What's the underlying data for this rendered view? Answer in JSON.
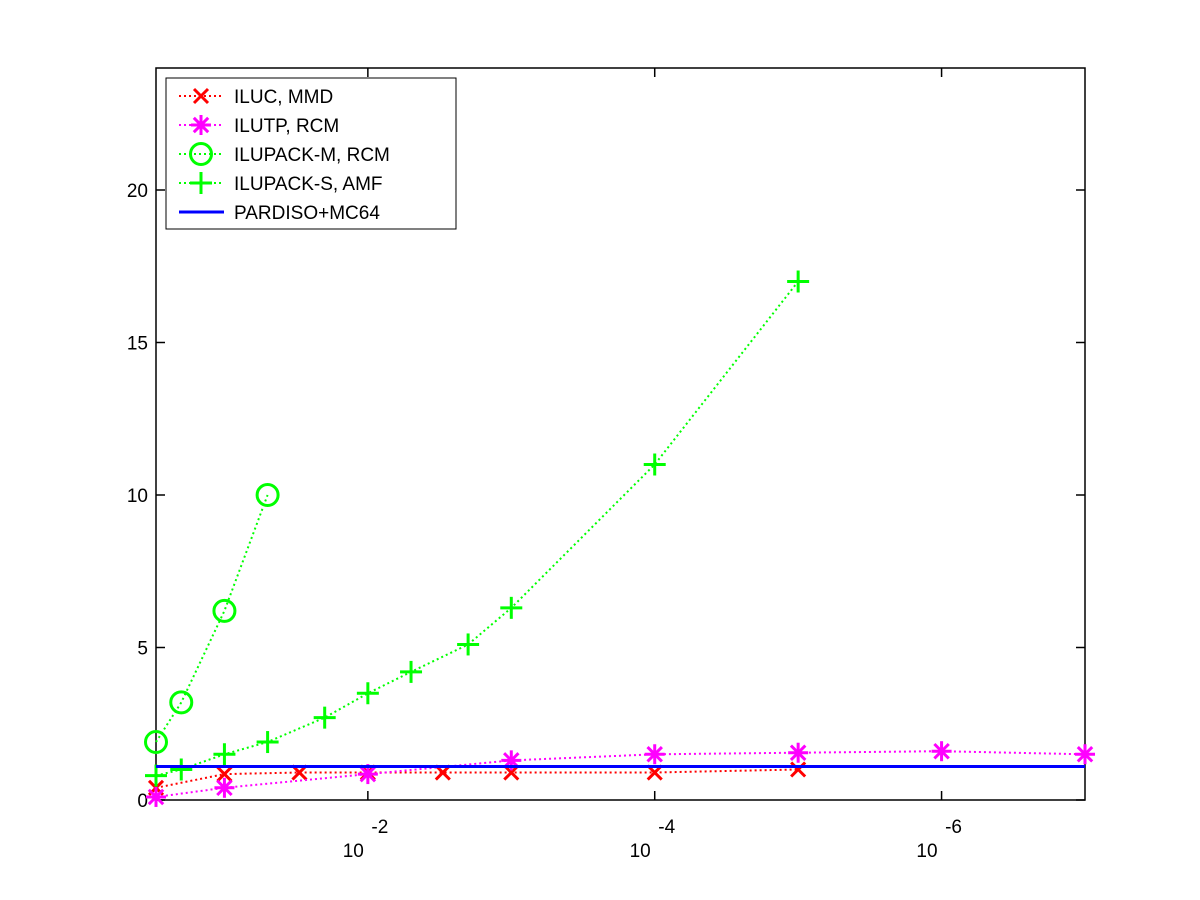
{
  "chart_data": {
    "type": "line",
    "title": "",
    "xlabel": "",
    "ylabel": "",
    "x_scale": "log",
    "x_reversed": true,
    "xlim": [
      0.3,
      1e-07
    ],
    "ylim": [
      0,
      24
    ],
    "yticks": [
      0,
      5,
      10,
      15,
      20
    ],
    "xticks": [
      {
        "value": 0.01,
        "base": "10",
        "exponent": "-2"
      },
      {
        "value": 0.0001,
        "base": "10",
        "exponent": "-4"
      },
      {
        "value": 1e-06,
        "base": "10",
        "exponent": "-6"
      }
    ],
    "grid": false,
    "legend_position": "top-left",
    "series": [
      {
        "name": "ILUC, MMD",
        "color": "#ff0000",
        "marker": "x",
        "line_style": "dotted",
        "x": [
          0.3,
          0.1,
          0.03,
          0.01,
          0.003,
          0.001,
          0.0001,
          1e-05
        ],
        "y": [
          0.4,
          0.85,
          0.9,
          0.9,
          0.9,
          0.9,
          0.9,
          1.0
        ]
      },
      {
        "name": "ILUTP, RCM",
        "color": "#ff00ff",
        "marker": "asterisk",
        "line_style": "dotted",
        "x": [
          0.3,
          0.1,
          0.01,
          0.001,
          0.0001,
          1e-05,
          1e-06,
          1e-07
        ],
        "y": [
          0.1,
          0.4,
          0.85,
          1.3,
          1.5,
          1.55,
          1.6,
          1.5
        ]
      },
      {
        "name": "ILUPACK-M, RCM",
        "color": "#00ff00",
        "marker": "circle",
        "line_style": "dotted",
        "x": [
          0.3,
          0.2,
          0.1,
          0.05
        ],
        "y": [
          1.9,
          3.2,
          6.2,
          10.0
        ]
      },
      {
        "name": "ILUPACK-S, AMF",
        "color": "#00ff00",
        "marker": "plus",
        "line_style": "dotted",
        "x": [
          0.3,
          0.2,
          0.1,
          0.05,
          0.02,
          0.01,
          0.005,
          0.002,
          0.001,
          0.0001,
          1e-05
        ],
        "y": [
          0.8,
          1.0,
          1.5,
          1.9,
          2.7,
          3.5,
          4.2,
          5.1,
          6.3,
          11.0,
          17.0
        ]
      },
      {
        "name": "PARDISO+MC64",
        "color": "#0000ff",
        "marker": "none",
        "line_style": "solid",
        "x": [
          0.3,
          1e-07
        ],
        "y": [
          1.1,
          1.1
        ]
      }
    ]
  }
}
